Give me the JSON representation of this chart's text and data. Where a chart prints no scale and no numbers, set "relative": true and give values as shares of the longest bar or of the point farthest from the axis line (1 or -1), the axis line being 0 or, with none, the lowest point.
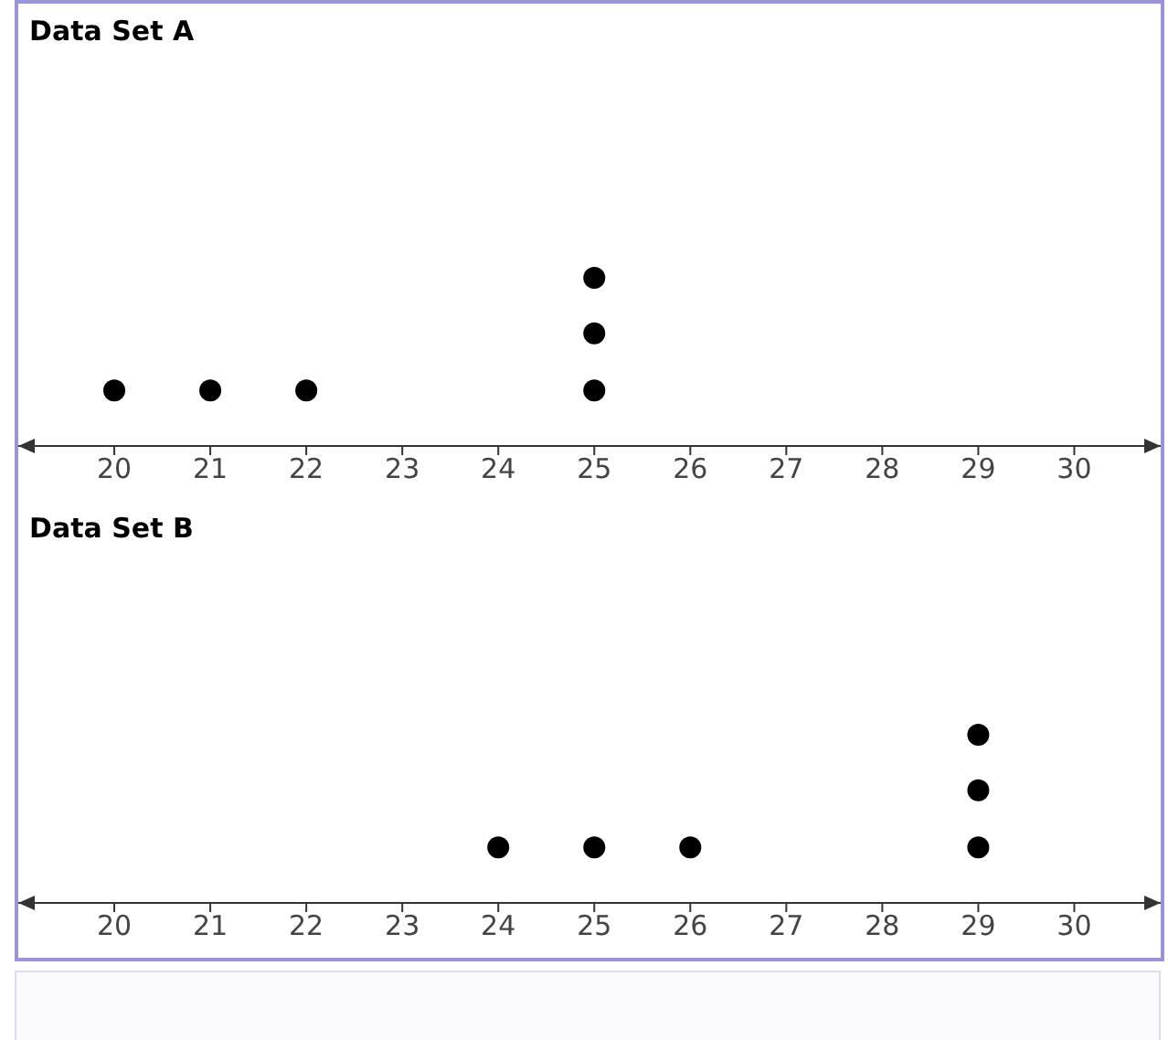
{
  "chart_data": [
    {
      "type": "scatter",
      "title": "Data Set A",
      "relative": true,
      "marker": "circle",
      "color": "#000000",
      "x": [
        20,
        21,
        22,
        25,
        25,
        25
      ],
      "values": [
        0.33,
        0.33,
        0.33,
        0.33,
        0.67,
        1
      ],
      "xlim": [
        19,
        30.9
      ],
      "xticks": [
        20,
        21,
        22,
        23,
        24,
        25,
        26,
        27,
        28,
        29,
        30
      ]
    },
    {
      "type": "scatter",
      "title": "Data Set B",
      "relative": true,
      "marker": "circle",
      "color": "#000000",
      "x": [
        24,
        25,
        26,
        29,
        29,
        29
      ],
      "values": [
        0.33,
        0.33,
        0.33,
        0.33,
        0.67,
        1
      ],
      "xlim": [
        19,
        30.9
      ],
      "xticks": [
        20,
        21,
        22,
        23,
        24,
        25,
        26,
        27,
        28,
        29,
        30
      ]
    }
  ]
}
